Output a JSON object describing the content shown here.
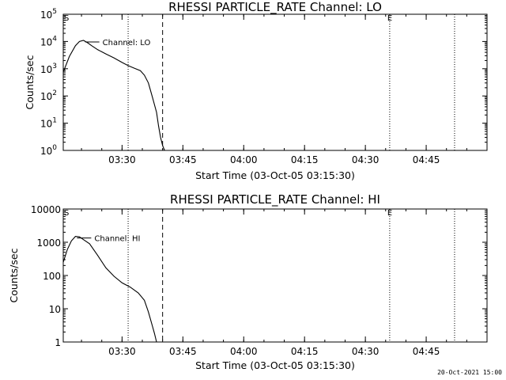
{
  "footer_timestamp": "20-Oct-2021 15:00",
  "chart_data": [
    {
      "type": "line",
      "title": "RHESSI PARTICLE_RATE Channel: LO",
      "xlabel": "Start Time (03-Oct-05 03:15:30)",
      "ylabel": "Counts/sec",
      "yscale": "log",
      "xlim": [
        "03:15:30",
        "05:00:00"
      ],
      "ylim": [
        1,
        100000
      ],
      "x_ticks": [
        "03:30",
        "03:45",
        "04:00",
        "04:15",
        "04:30",
        "04:45"
      ],
      "y_ticks": [
        {
          "value": 1,
          "base": "10",
          "exp": "0"
        },
        {
          "value": 10,
          "base": "10",
          "exp": "1"
        },
        {
          "value": 100,
          "base": "10",
          "exp": "2"
        },
        {
          "value": 1000,
          "base": "10",
          "exp": "3"
        },
        {
          "value": 10000,
          "base": "10",
          "exp": "4"
        },
        {
          "value": 100000,
          "base": "10",
          "exp": "5"
        }
      ],
      "series": [
        {
          "name": "Channel: LO",
          "x": [
            "03:15:30",
            "03:17:00",
            "03:18:30",
            "03:19:30",
            "03:20:30",
            "03:21:30",
            "03:22:30",
            "03:24:00",
            "03:26:00",
            "03:28:00",
            "03:30:00",
            "03:31:30",
            "03:33:00",
            "03:34:30",
            "03:35:30",
            "03:36:30",
            "03:37:30",
            "03:38:30",
            "03:39:00",
            "03:39:30",
            "03:40:00",
            "03:40:30"
          ],
          "y": [
            750,
            2800,
            7000,
            10000,
            11000,
            9000,
            7000,
            5000,
            3500,
            2500,
            1700,
            1300,
            1050,
            850,
            580,
            300,
            90,
            25,
            8,
            3,
            1.5,
            1
          ]
        }
      ],
      "markers": [
        {
          "type": "dotted",
          "x": "03:31:30"
        },
        {
          "type": "dashed",
          "x": "03:40:00"
        },
        {
          "type": "dotted",
          "x": "04:36:00",
          "label": "E"
        },
        {
          "type": "dotted",
          "x": "04:52:00"
        },
        {
          "type": "edge",
          "x": "03:15:30",
          "label": "S"
        }
      ],
      "legend_label": "Channel: LO"
    },
    {
      "type": "line",
      "title": "RHESSI PARTICLE_RATE Channel: HI",
      "xlabel": "Start Time (03-Oct-05 03:15:30)",
      "ylabel": "Counts/sec",
      "yscale": "log",
      "xlim": [
        "03:15:30",
        "05:00:00"
      ],
      "ylim": [
        1,
        10000
      ],
      "x_ticks": [
        "03:30",
        "03:45",
        "04:00",
        "04:15",
        "04:30",
        "04:45"
      ],
      "y_ticks": [
        {
          "value": 1,
          "label": "1"
        },
        {
          "value": 10,
          "label": "10"
        },
        {
          "value": 100,
          "label": "100"
        },
        {
          "value": 1000,
          "label": "1000"
        },
        {
          "value": 10000,
          "label": "10000"
        }
      ],
      "series": [
        {
          "name": "Channel: HI",
          "x": [
            "03:15:30",
            "03:16:30",
            "03:17:30",
            "03:18:30",
            "03:19:30",
            "03:20:30",
            "03:22:00",
            "03:24:00",
            "03:26:00",
            "03:28:00",
            "03:30:00",
            "03:32:00",
            "03:34:00",
            "03:35:30",
            "03:36:30",
            "03:37:30",
            "03:38:00",
            "03:38:30"
          ],
          "y": [
            250,
            600,
            1100,
            1500,
            1450,
            1200,
            900,
            400,
            170,
            95,
            60,
            45,
            30,
            18,
            8,
            3,
            1.8,
            1
          ]
        }
      ],
      "markers": [
        {
          "type": "dotted",
          "x": "03:31:30"
        },
        {
          "type": "dashed",
          "x": "03:40:00"
        },
        {
          "type": "dotted",
          "x": "04:36:00",
          "label": "E"
        },
        {
          "type": "dotted",
          "x": "04:52:00"
        },
        {
          "type": "edge",
          "x": "03:15:30",
          "label": "S"
        }
      ],
      "legend_label": "Channel: HI"
    }
  ]
}
